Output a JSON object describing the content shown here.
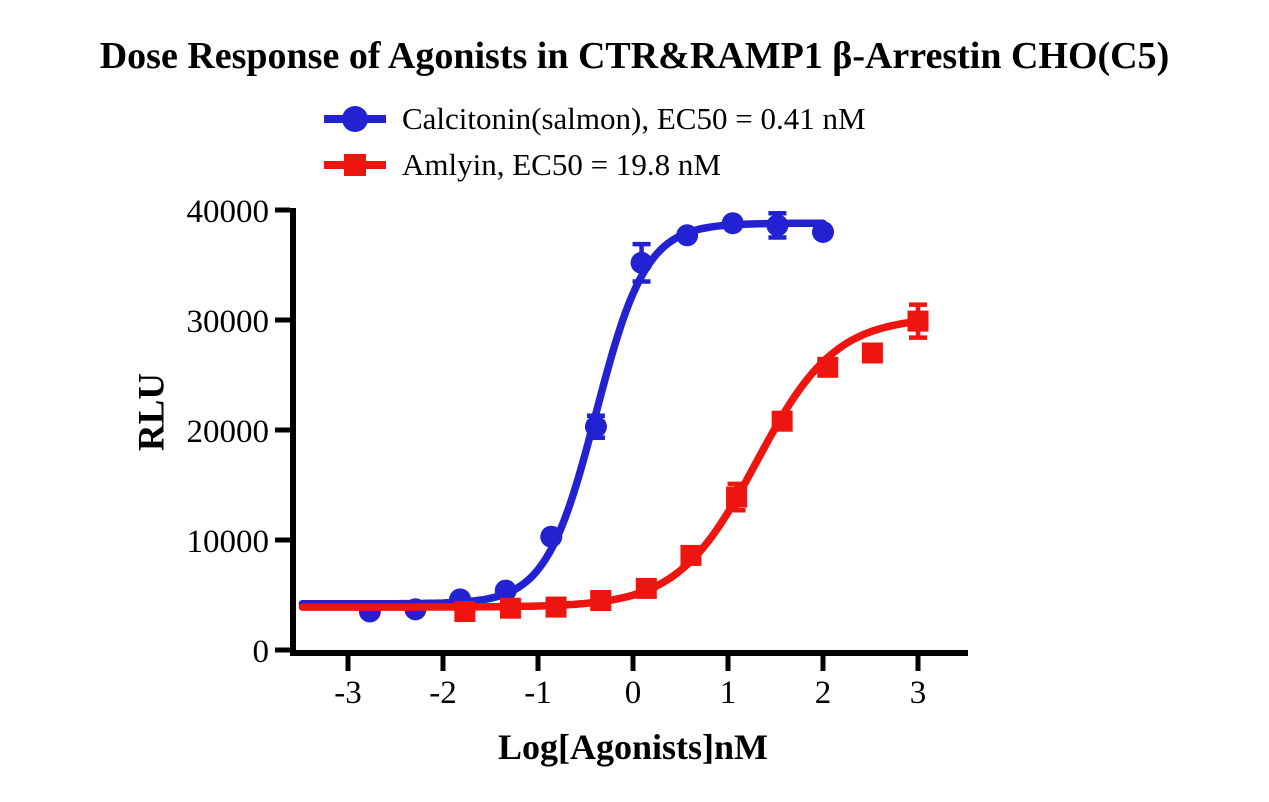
{
  "chart_data": {
    "type": "scatter",
    "title": "Dose Response of Agonists in CTR&RAMP1 β-Arrestin CHO(C5)",
    "xlabel": "Log[Agonists]nM",
    "ylabel": "RLU",
    "xlim": [
      -3.5,
      3.55
    ],
    "ylim": [
      0,
      40000
    ],
    "xticks": [
      -3,
      -2,
      -1,
      0,
      1,
      2,
      3
    ],
    "yticks": [
      0,
      10000,
      20000,
      30000,
      40000
    ],
    "grid": false,
    "legend_position": "top-center",
    "series": [
      {
        "name": "Calcitonin(salmon), EC50 = 0.41 nM",
        "ec50_nM": 0.41,
        "color": "#2222d2",
        "marker": "circle",
        "x": [
          -2.77,
          -2.29,
          -1.82,
          -1.34,
          -0.86,
          -0.39,
          0.09,
          0.57,
          1.05,
          1.52,
          2.0
        ],
        "y": [
          3500,
          3700,
          4600,
          5400,
          10300,
          20300,
          35200,
          37700,
          38800,
          38600,
          38000
        ],
        "yerr": [
          0,
          0,
          0,
          0,
          0,
          1000,
          1700,
          0,
          0,
          1100,
          0
        ],
        "fit": {
          "model": "4PL",
          "bottom": 4200,
          "top": 38800,
          "logec50": -0.39,
          "hill": 1.65,
          "curve_xmin": -3.48,
          "curve_xmax": 2.0
        }
      },
      {
        "name": "Amlyin, EC50 = 19.8 nM",
        "ec50_nM": 19.8,
        "color": "#ee1410",
        "marker": "square",
        "x": [
          -1.77,
          -1.29,
          -0.81,
          -0.34,
          0.14,
          0.61,
          1.09,
          1.57,
          2.05,
          2.52,
          3.0
        ],
        "y": [
          3500,
          3800,
          3900,
          4500,
          5600,
          8600,
          13900,
          20800,
          25700,
          27000,
          29900
        ],
        "yerr": [
          0,
          0,
          0,
          0,
          0,
          0,
          1200,
          0,
          0,
          0,
          1500
        ],
        "fit": {
          "model": "4PL",
          "bottom": 3900,
          "top": 30300,
          "logec50": 1.3,
          "hill": 1.05,
          "curve_xmin": -3.48,
          "curve_xmax": 3.0
        }
      }
    ]
  }
}
